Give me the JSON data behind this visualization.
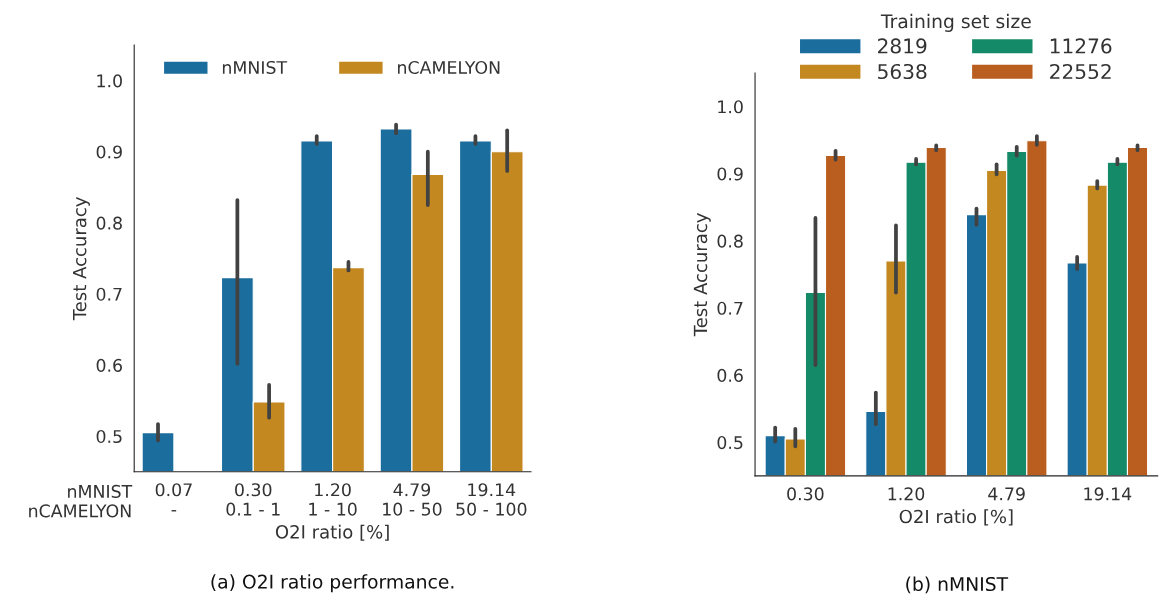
{
  "chart_data": [
    {
      "type": "bar",
      "xlabel": "O2I ratio [%]",
      "ylabel": "Test Accuracy",
      "categories": [
        "0.07\n-",
        "0.30\n0.1 - 1",
        "1.20\n1 - 10",
        "4.79\n10 - 50",
        "19.14\n50 - 100"
      ],
      "series": [
        {
          "name": "nMNIST",
          "color": "#1a6d9c",
          "values": [
            0.505,
            0.723,
            0.915,
            0.932,
            0.915
          ],
          "errors": [
            [
              0.494,
              0.517
            ],
            [
              0.602,
              0.832
            ],
            [
              0.911,
              0.922
            ],
            [
              0.926,
              0.938
            ],
            [
              0.911,
              0.922
            ]
          ]
        },
        {
          "name": "nCAMELYON",
          "color": "#c38820",
          "values": [
            null,
            0.548,
            0.737,
            0.868,
            0.9
          ],
          "errors": [
            null,
            [
              0.526,
              0.572
            ],
            [
              0.733,
              0.745
            ],
            [
              0.825,
              0.9
            ],
            [
              0.873,
              0.93
            ]
          ]
        }
      ],
      "ylim": [
        0.45,
        1.05
      ],
      "yticks": [
        {
          "value": 0.5,
          "label": "0.5"
        },
        {
          "value": 0.6,
          "label": "0.6"
        },
        {
          "value": 0.7,
          "label": "0.7"
        },
        {
          "value": 0.8,
          "label": "0.8"
        },
        {
          "value": 0.9,
          "label": "0.9"
        },
        {
          "value": 1.0,
          "label": "1.0"
        }
      ],
      "legend": "top",
      "grid": false,
      "annotations": [
        "nMNIST\nnCAMELYON",
        "(a) O2I ratio performance."
      ]
    },
    {
      "type": "bar",
      "xlabel": "O2I ratio [%]",
      "ylabel": "Test Accuracy",
      "legend_title": "Training set size",
      "categories": [
        "0.30",
        "1.20",
        "4.79",
        "19.14"
      ],
      "series": [
        {
          "name": "2819",
          "color": "#1a6d9c",
          "values": [
            0.51,
            0.546,
            0.839,
            0.767
          ],
          "errors": [
            [
              0.501,
              0.522
            ],
            [
              0.527,
              0.574
            ],
            [
              0.824,
              0.848
            ],
            [
              0.758,
              0.776
            ]
          ]
        },
        {
          "name": "5638",
          "color": "#c38820",
          "values": [
            0.505,
            0.77,
            0.905,
            0.883
          ],
          "errors": [
            [
              0.494,
              0.52
            ],
            [
              0.723,
              0.823
            ],
            [
              0.899,
              0.914
            ],
            [
              0.878,
              0.889
            ]
          ]
        },
        {
          "name": "11276",
          "color": "#158a68",
          "values": [
            0.723,
            0.917,
            0.933,
            0.917
          ],
          "errors": [
            [
              0.615,
              0.834
            ],
            [
              0.914,
              0.922
            ],
            [
              0.927,
              0.94
            ],
            [
              0.914,
              0.922
            ]
          ]
        },
        {
          "name": "22552",
          "color": "#b95e1e",
          "values": [
            0.927,
            0.939,
            0.949,
            0.939
          ],
          "errors": [
            [
              0.921,
              0.934
            ],
            [
              0.935,
              0.942
            ],
            [
              0.943,
              0.956
            ],
            [
              0.935,
              0.942
            ]
          ]
        }
      ],
      "ylim": [
        0.45,
        1.05
      ],
      "yticks": [
        {
          "value": 0.5,
          "label": "0.5"
        },
        {
          "value": 0.6,
          "label": "0.6"
        },
        {
          "value": 0.7,
          "label": "0.7"
        },
        {
          "value": 0.8,
          "label": "0.8"
        },
        {
          "value": 0.9,
          "label": "0.9"
        },
        {
          "value": 1.0,
          "label": "1.0"
        }
      ],
      "legend": "top",
      "grid": false,
      "annotations": [
        "(b) nMNIST"
      ]
    }
  ]
}
